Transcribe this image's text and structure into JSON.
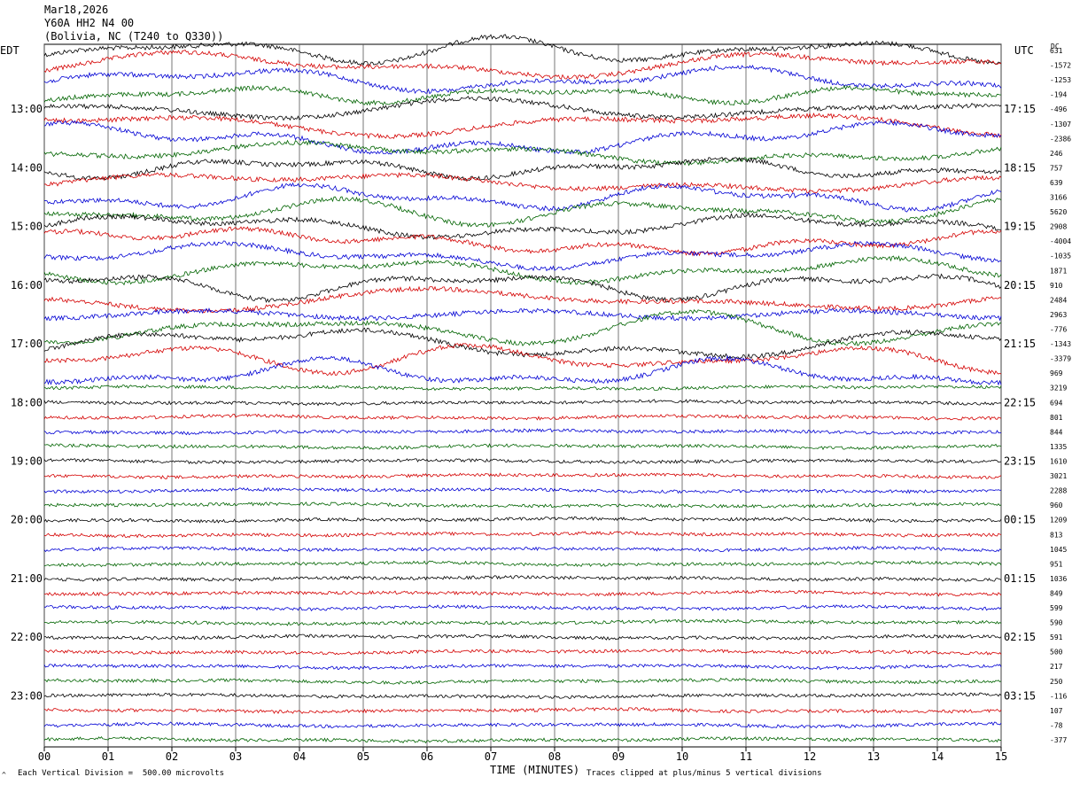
{
  "header": {
    "date": "Mar18,2026",
    "station": "Y60A HH2 N4 00",
    "location": "(Bolivia, NC (T240 to Q330))"
  },
  "left_axis_label": "EDT",
  "right_axis_label": "UTC",
  "dc_label": "DC",
  "footer": {
    "scale_note": "Each Vertical Division =  500.00 microvolts",
    "x_title": "TIME (MINUTES)",
    "clip_note": "Traces clipped at plus/minus 5 vertical divisions",
    "icon": "^"
  },
  "colors": {
    "trace_cycle": [
      "#000000",
      "#d40000",
      "#0000d4",
      "#006400"
    ],
    "grid": "#000000"
  },
  "chart_data": {
    "type": "line",
    "title": "Mar18,2026 Y60A HH2 N4 00 (Bolivia, NC (T240 to Q330))",
    "xlabel": "TIME (MINUTES)",
    "xlim": [
      0,
      15
    ],
    "x_ticks": [
      "00",
      "01",
      "02",
      "03",
      "04",
      "05",
      "06",
      "07",
      "08",
      "09",
      "10",
      "11",
      "12",
      "13",
      "14",
      "15"
    ],
    "grid": true,
    "left_hour_labels": [
      "13:00",
      "14:00",
      "15:00",
      "16:00",
      "17:00",
      "18:00",
      "19:00",
      "20:00",
      "21:00",
      "22:00",
      "23:00"
    ],
    "right_hour_labels": [
      "17:15",
      "18:15",
      "19:15",
      "20:15",
      "21:15",
      "22:15",
      "23:15",
      "00:15",
      "01:15",
      "02:15",
      "03:15"
    ],
    "trace_dc_offsets": [
      631,
      -1572,
      -1253,
      -194,
      -496,
      -1307,
      -2386,
      246,
      757,
      639,
      3166,
      5620,
      2908,
      -4004,
      -1035,
      1871,
      910,
      2484,
      2963,
      -776,
      -1343,
      -3379,
      969,
      3219,
      694,
      801,
      844,
      1335,
      1610,
      3021,
      2288,
      960,
      1209,
      813,
      1045,
      951,
      1036,
      849,
      599,
      590,
      591,
      500,
      217,
      250,
      -116,
      107,
      -78,
      -377
    ],
    "trace_activity": [
      {
        "trace": 0,
        "level": "high"
      },
      {
        "trace": 1,
        "level": "high"
      },
      {
        "trace": 2,
        "level": "high"
      },
      {
        "trace": 3,
        "level": "high"
      },
      {
        "trace": 4,
        "level": "high"
      },
      {
        "trace": 5,
        "level": "high"
      },
      {
        "trace": 6,
        "level": "high"
      },
      {
        "trace": 7,
        "level": "high"
      },
      {
        "trace": 8,
        "level": "high"
      },
      {
        "trace": 9,
        "level": "high"
      },
      {
        "trace": 10,
        "level": "high"
      },
      {
        "trace": 11,
        "level": "high"
      },
      {
        "trace": 12,
        "level": "high"
      },
      {
        "trace": 13,
        "level": "high"
      },
      {
        "trace": 14,
        "level": "high"
      },
      {
        "trace": 15,
        "level": "high"
      },
      {
        "trace": 16,
        "level": "high"
      },
      {
        "trace": 17,
        "level": "high"
      },
      {
        "trace": 18,
        "level": "high"
      },
      {
        "trace": 19,
        "level": "high"
      },
      {
        "trace": 20,
        "level": "high"
      },
      {
        "trace": 21,
        "level": "high"
      },
      {
        "trace": 22,
        "level": "high"
      },
      {
        "trace": 23,
        "level": "low"
      }
    ]
  }
}
